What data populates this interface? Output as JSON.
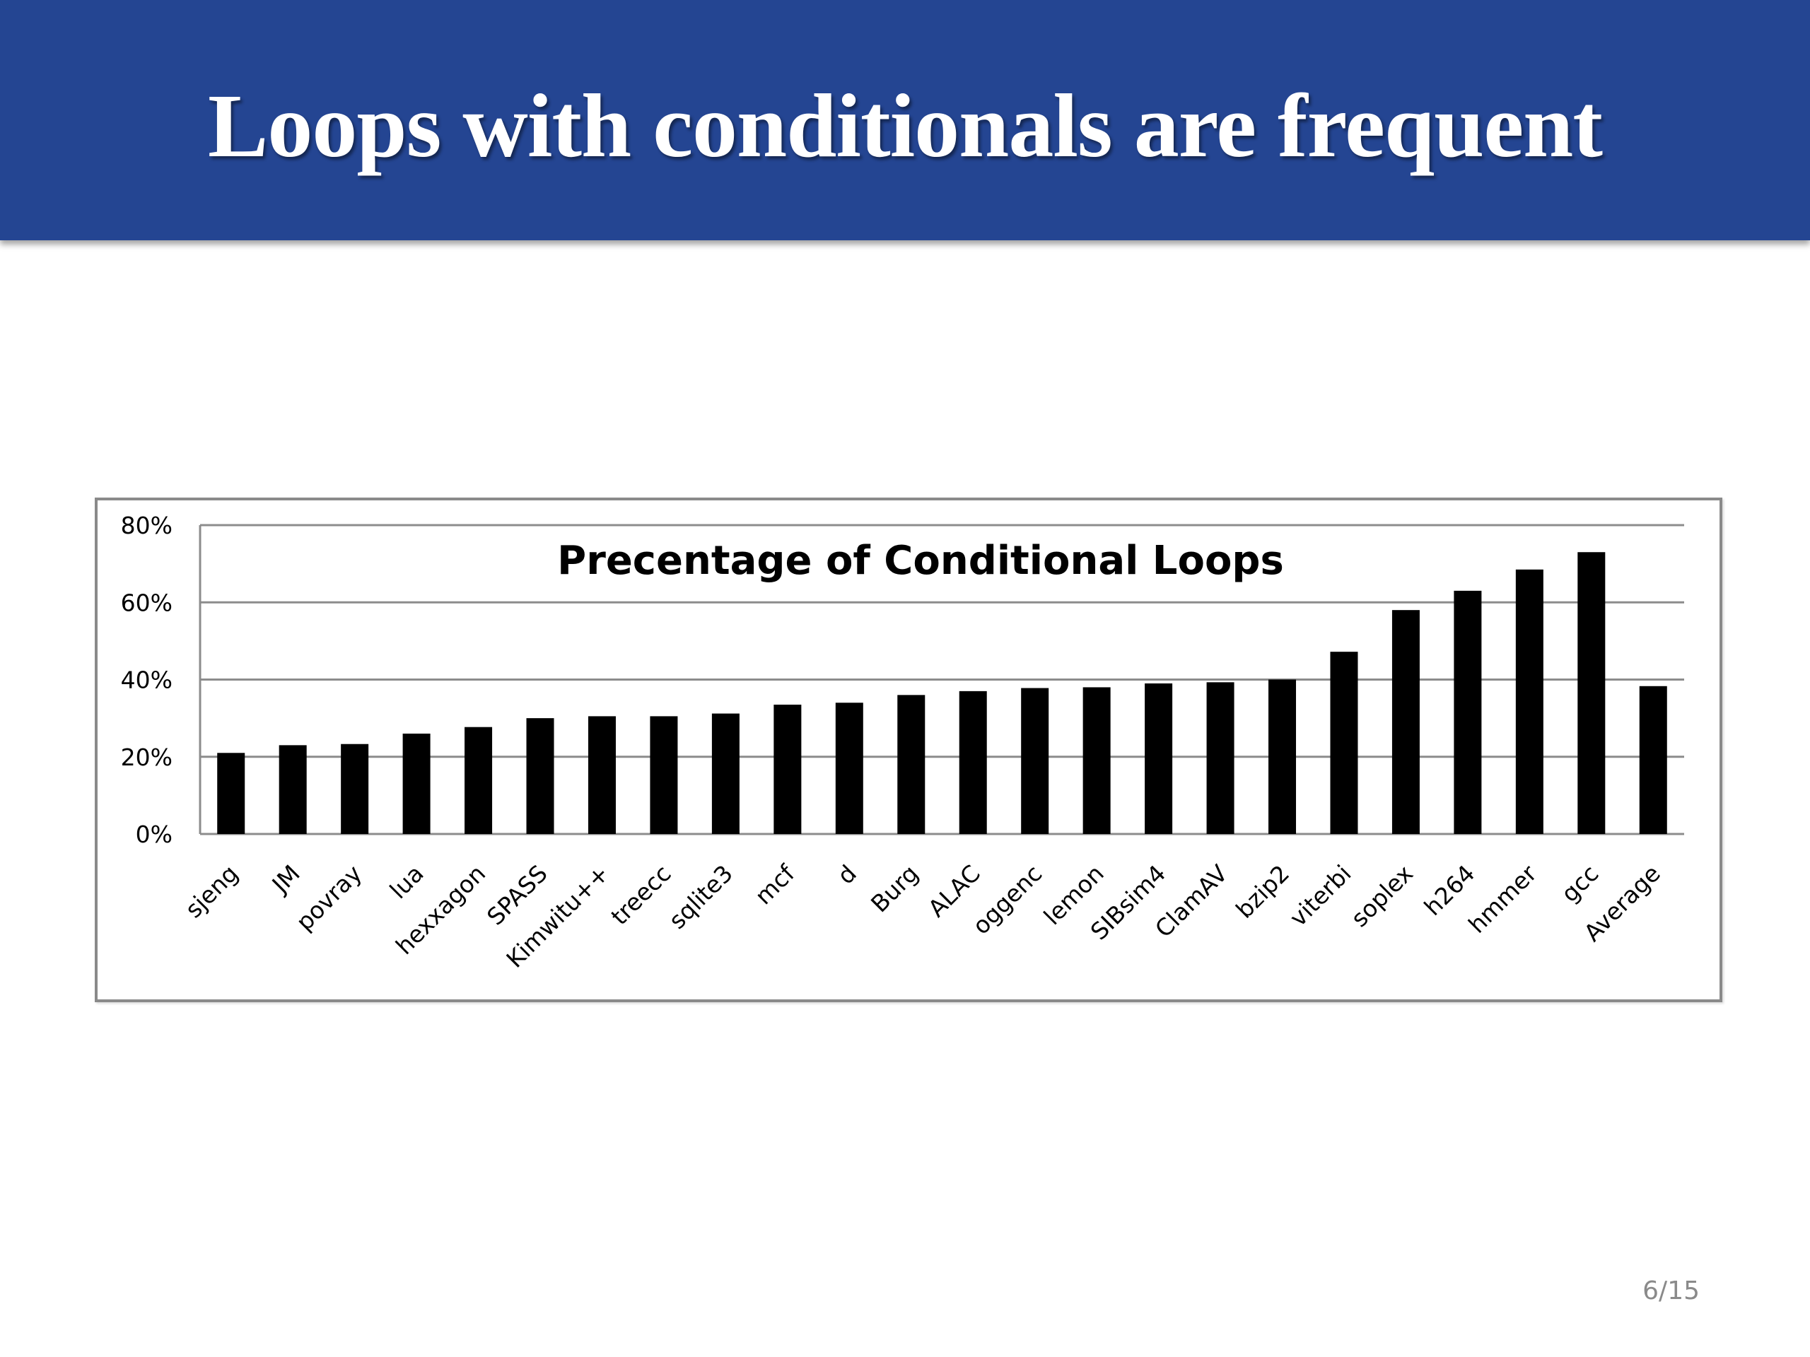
{
  "slide": {
    "title": "Loops with conditionals are frequent",
    "page_number": "6/15"
  },
  "colors": {
    "header_bg": "#244592",
    "bar": "#000000"
  },
  "chart_data": {
    "type": "bar",
    "title": "Precentage of Conditional Loops",
    "xlabel": "",
    "ylabel": "",
    "ylim": [
      0,
      80
    ],
    "yticks": [
      0,
      20,
      40,
      60,
      80
    ],
    "ytick_labels": [
      "0%",
      "20%",
      "40%",
      "60%",
      "80%"
    ],
    "grid": true,
    "legend": "none",
    "categories": [
      "sjeng",
      "JM",
      "povray",
      "lua",
      "hexxagon",
      "SPASS",
      "Kimwitu++",
      "treecc",
      "sqlite3",
      "mcf",
      "d",
      "Burg",
      "ALAC",
      "oggenc",
      "lemon",
      "SIBsim4",
      "ClamAV",
      "bzip2",
      "viterbi",
      "soplex",
      "h264",
      "hmmer",
      "gcc",
      "Average"
    ],
    "values": [
      21,
      23,
      23.3,
      26,
      27.7,
      30,
      30.5,
      30.5,
      31.2,
      33.5,
      34,
      36,
      37,
      37.8,
      38,
      39,
      39.3,
      40,
      47.2,
      58,
      63,
      68.5,
      73,
      38.3
    ]
  }
}
